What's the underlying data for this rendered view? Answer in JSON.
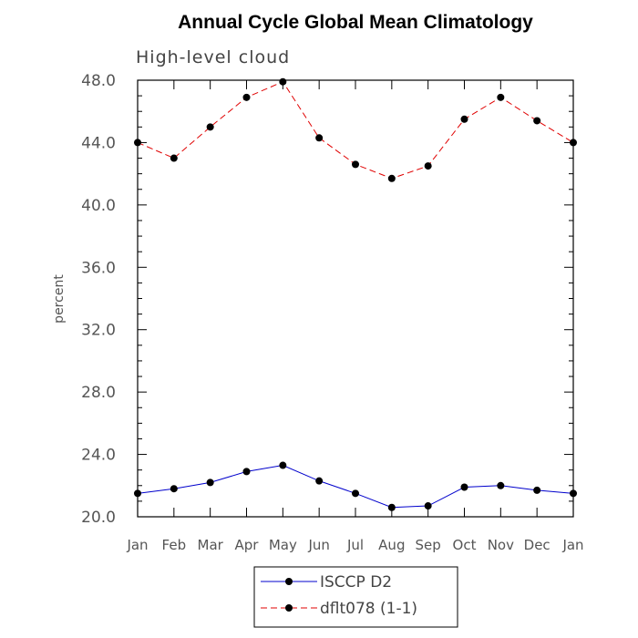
{
  "chart_data": {
    "type": "line",
    "title": "Annual Cycle Global Mean Climatology",
    "subtitle": "High-level cloud",
    "xlabel": "",
    "ylabel": "percent",
    "categories": [
      "Jan",
      "Feb",
      "Mar",
      "Apr",
      "May",
      "Jun",
      "Jul",
      "Aug",
      "Sep",
      "Oct",
      "Nov",
      "Dec",
      "Jan"
    ],
    "ylim": [
      20.0,
      48.0
    ],
    "yticks": [
      "20.0",
      "24.0",
      "28.0",
      "32.0",
      "36.0",
      "40.0",
      "44.0",
      "48.0"
    ],
    "series": [
      {
        "name": "ISCCP D2",
        "color": "#0000cc",
        "dash": "solid",
        "values": [
          21.5,
          21.8,
          22.2,
          22.9,
          23.3,
          22.3,
          21.5,
          20.6,
          20.7,
          21.9,
          22.0,
          21.7,
          21.5
        ]
      },
      {
        "name": "dflt078 (1-1)",
        "color": "#e00000",
        "dash": "dashed",
        "values": [
          44.0,
          43.0,
          45.0,
          46.9,
          47.9,
          44.3,
          42.6,
          41.7,
          42.5,
          45.5,
          46.9,
          45.4,
          44.0
        ]
      }
    ],
    "legend": "bottom"
  }
}
